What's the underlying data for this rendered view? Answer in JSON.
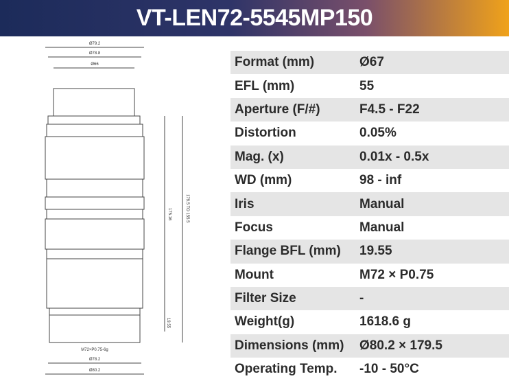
{
  "header": {
    "title": "VT-LEN72-5545MP150"
  },
  "drawing": {
    "labels": [
      "Ø79.2",
      "Ø78.8",
      "Ø66",
      "179.5 TO 155.5",
      "175.16",
      "19.55",
      "M72×P0.75-6g",
      "Ø78.2",
      "Ø80.2"
    ]
  },
  "table": {
    "rows": [
      [
        "Format (mm)",
        "Ø67"
      ],
      [
        "EFL (mm)",
        "55"
      ],
      [
        "Aperture (F/#)",
        "F4.5 - F22"
      ],
      [
        "Distortion",
        "0.05%"
      ],
      [
        "Mag. (x)",
        "0.01x - 0.5x"
      ],
      [
        "WD (mm)",
        "98 - inf"
      ],
      [
        "Iris",
        "Manual"
      ],
      [
        "Focus",
        "Manual"
      ],
      [
        "Flange BFL (mm)",
        "19.55"
      ],
      [
        "Mount",
        "M72 × P0.75"
      ],
      [
        "Filter Size",
        "-"
      ],
      [
        "Weight(g)",
        "1618.6 g"
      ],
      [
        "Dimensions (mm)",
        "Ø80.2 × 179.5"
      ],
      [
        "Operating Temp.",
        "-10 -  50°C"
      ]
    ]
  }
}
